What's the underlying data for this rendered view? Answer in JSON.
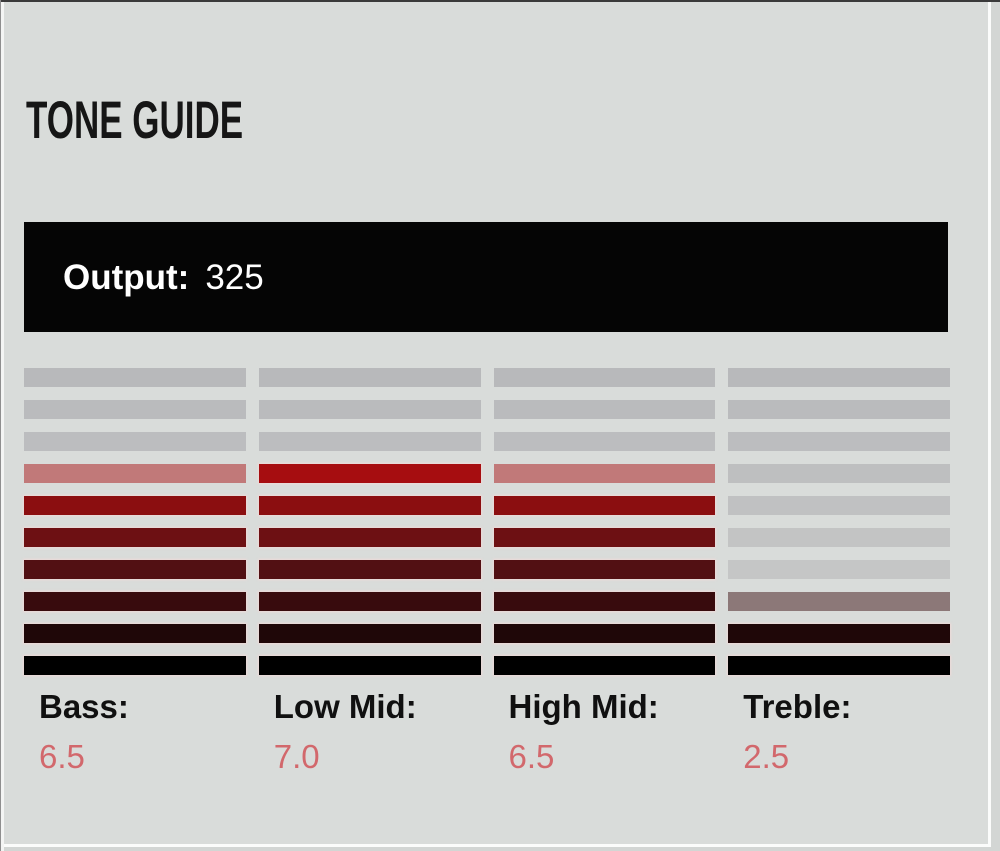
{
  "panel": {
    "title": "TONE GUIDE"
  },
  "output": {
    "label": "Output:",
    "value": "325"
  },
  "columns": [
    {
      "label": "Bass:",
      "value": "6.5"
    },
    {
      "label": "Low Mid:",
      "value": "7.0"
    },
    {
      "label": "High Mid:",
      "value": "6.5"
    },
    {
      "label": "Treble:",
      "value": "2.5"
    }
  ],
  "chart_data": {
    "type": "bar",
    "title": "TONE GUIDE",
    "categories": [
      "Bass",
      "Low Mid",
      "High Mid",
      "Treble"
    ],
    "values": [
      6.5,
      7.0,
      6.5,
      2.5
    ],
    "ylim": [
      0,
      10
    ],
    "segments_per_column": 10,
    "half_step": 0.5,
    "output": 325,
    "orientation": "vertical-segmented-meter"
  },
  "colors": {
    "background": "#d9dcda",
    "output_bar": "#050505",
    "output_text": "#ffffff",
    "title_text": "#161616",
    "label_text": "#101010",
    "value_text": "#d2686c",
    "inactive_gray_top": "#b8b9bb",
    "inactive_gray_bottom": "#cbcccb",
    "segment_scale_top_to_bottom": [
      "#a60d10",
      "#8b0e10",
      "#6d1013",
      "#521013",
      "#380b0d",
      "#1f0708",
      "#000000"
    ]
  }
}
